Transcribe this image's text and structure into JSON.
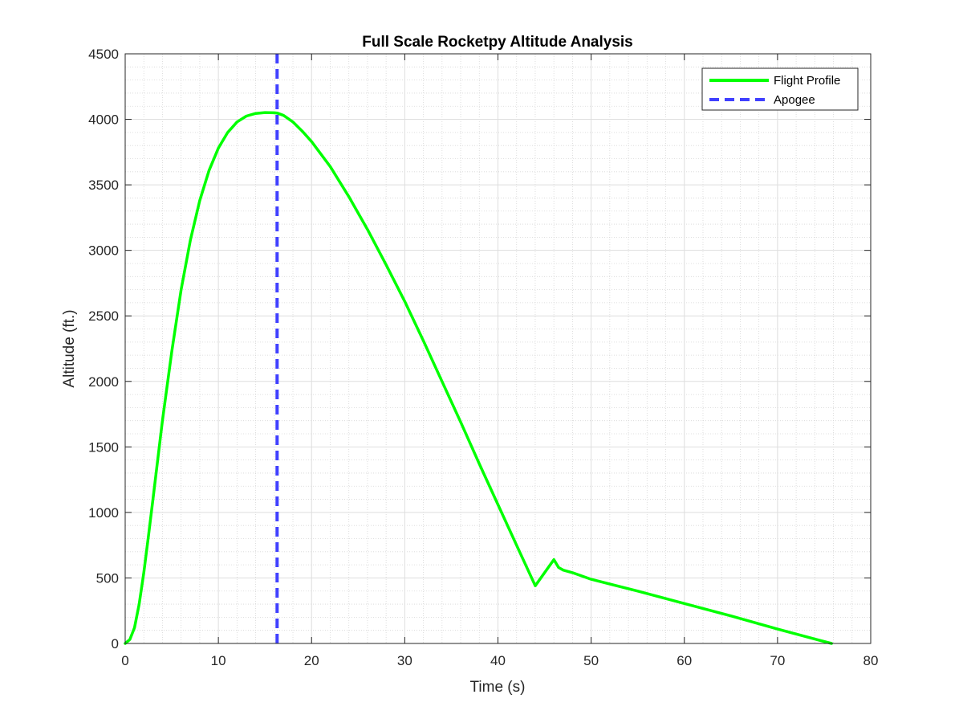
{
  "chart_data": {
    "type": "line",
    "title": "Full Scale Rocketpy Altitude Analysis",
    "xlabel": "Time (s)",
    "ylabel": "Altitude (ft.)",
    "xlim": [
      0,
      80
    ],
    "ylim": [
      0,
      4500
    ],
    "xticks": [
      0,
      10,
      20,
      30,
      40,
      50,
      60,
      70,
      80
    ],
    "yticks": [
      0,
      500,
      1000,
      1500,
      2000,
      2500,
      3000,
      3500,
      4000,
      4500
    ],
    "grid": "major and minor",
    "legend_position": "top-right",
    "series": [
      {
        "name": "Flight Profile",
        "color": "#00ff00",
        "style": "solid",
        "x": [
          0,
          0.5,
          1,
          1.5,
          2,
          2.5,
          3,
          4,
          5,
          6,
          7,
          8,
          9,
          10,
          11,
          12,
          13,
          14,
          15,
          16,
          16.3,
          17,
          18,
          19,
          20,
          22,
          24,
          26,
          28,
          30,
          32,
          34,
          36,
          38,
          40,
          42,
          44,
          46,
          46.5,
          47,
          48,
          50,
          55,
          60,
          65,
          70,
          75.8
        ],
        "y": [
          0,
          30,
          120,
          300,
          540,
          820,
          1110,
          1700,
          2230,
          2700,
          3080,
          3380,
          3610,
          3780,
          3900,
          3980,
          4025,
          4045,
          4052,
          4050,
          4048,
          4030,
          3980,
          3910,
          3830,
          3640,
          3410,
          3160,
          2890,
          2610,
          2310,
          2000,
          1690,
          1370,
          1060,
          750,
          440,
          640,
          580,
          560,
          540,
          490,
          400,
          305,
          210,
          110,
          0
        ]
      },
      {
        "name": "Apogee",
        "color": "#4040ff",
        "style": "dashed",
        "x": [
          16.3,
          16.3
        ],
        "y": [
          0,
          4500
        ]
      }
    ]
  }
}
